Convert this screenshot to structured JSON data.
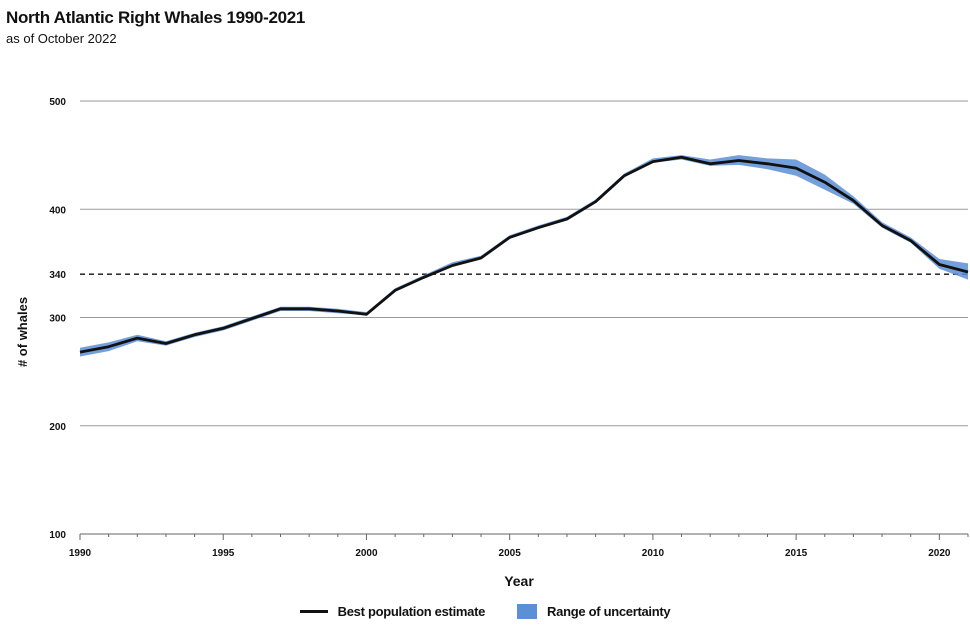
{
  "chart_data": {
    "type": "line",
    "title": "North Atlantic Right Whales 1990-2021",
    "subtitle": "as of October 2022",
    "xlabel": "Year",
    "ylabel": "# of whales",
    "xlim": [
      1990,
      2021
    ],
    "ylim": [
      100,
      500
    ],
    "x_ticks": [
      1990,
      1995,
      2000,
      2005,
      2010,
      2015,
      2020
    ],
    "y_ticks": [
      100,
      200,
      300,
      340,
      400,
      500
    ],
    "reference_line": {
      "value": 340,
      "style": "dashed"
    },
    "grid": true,
    "legend_position": "bottom",
    "x": [
      1990,
      1991,
      1992,
      1993,
      1994,
      1995,
      1996,
      1997,
      1998,
      1999,
      2000,
      2001,
      2002,
      2003,
      2004,
      2005,
      2006,
      2007,
      2008,
      2009,
      2010,
      2011,
      2012,
      2013,
      2014,
      2015,
      2016,
      2017,
      2018,
      2019,
      2020,
      2021
    ],
    "series": [
      {
        "name": "Best population estimate",
        "color": "#111111",
        "values": [
          268,
          273,
          281,
          276,
          284,
          290,
          299,
          308,
          308,
          306,
          303,
          325,
          337,
          348,
          355,
          374,
          383,
          391,
          407,
          431,
          444,
          448,
          442,
          445,
          442,
          438,
          425,
          408,
          385,
          371,
          349,
          342
        ]
      },
      {
        "name": "Range of uncertainty",
        "color": "#5b8fd6",
        "lower": [
          264,
          269,
          278,
          274,
          282,
          288,
          297,
          306,
          306,
          304,
          302,
          324,
          336,
          347,
          354,
          373,
          382,
          390,
          406,
          430,
          443,
          446,
          440,
          441,
          437,
          431,
          418,
          405,
          383,
          369,
          345,
          335
        ],
        "upper": [
          272,
          277,
          284,
          278,
          286,
          292,
          301,
          310,
          310,
          308,
          305,
          327,
          339,
          351,
          357,
          376,
          385,
          393,
          409,
          433,
          447,
          450,
          446,
          450,
          447,
          446,
          432,
          412,
          388,
          374,
          354,
          350
        ]
      }
    ]
  }
}
